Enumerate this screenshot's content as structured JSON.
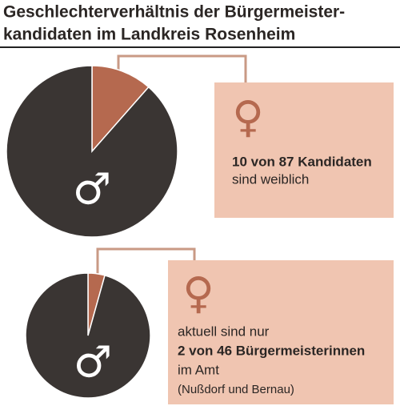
{
  "title": [
    "Geschlechterverhältnis der Bürgermeister-",
    "kandidaten im Landkreis Rosenheim"
  ],
  "chart_data": [
    {
      "type": "pie",
      "categories": [
        "♀",
        "♂"
      ],
      "values": [
        10,
        77
      ],
      "colors": [
        "#b5694f",
        "#3a3533"
      ],
      "caption": [
        {
          "text": "10 von 87 Kandidaten",
          "bold": true
        },
        {
          "text": "sind weiblich",
          "bold": false
        }
      ]
    },
    {
      "type": "pie",
      "categories": [
        "♀",
        "♂"
      ],
      "values": [
        2,
        44
      ],
      "colors": [
        "#b5694f",
        "#3a3533"
      ],
      "caption": [
        {
          "text": "aktuell sind nur",
          "bold": false
        },
        {
          "text": "2 von 46 Bürgermeisterinnen",
          "bold": true
        },
        {
          "text": "im Amt",
          "bold": false
        },
        {
          "text": "(Nußdorf und Bernau)",
          "bold": false
        }
      ]
    }
  ]
}
